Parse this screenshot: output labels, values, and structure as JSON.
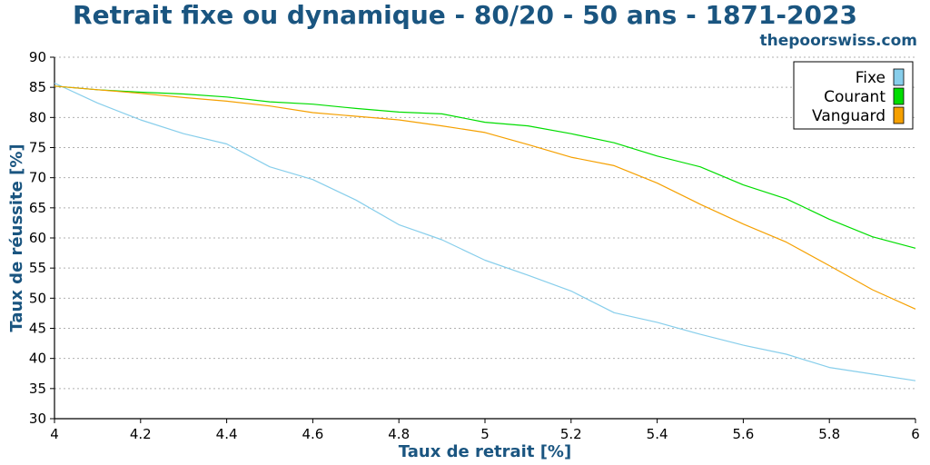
{
  "header": {
    "title": "Retrait fixe ou dynamique - 80/20 - 50 ans - 1871-2023",
    "site": "thepoorswiss.com"
  },
  "chart_data": {
    "type": "line",
    "title": "Retrait fixe ou dynamique - 80/20 - 50 ans - 1871-2023",
    "xlabel": "Taux de retrait [%]",
    "ylabel": "Taux de réussite [%]",
    "xlim": [
      4,
      6
    ],
    "ylim": [
      30,
      90
    ],
    "xticks": [
      "4",
      "4.2",
      "4.4",
      "4.6",
      "4.8",
      "5",
      "5.2",
      "5.4",
      "5.6",
      "5.8",
      "6"
    ],
    "yticks": [
      "30",
      "35",
      "40",
      "45",
      "50",
      "55",
      "60",
      "65",
      "70",
      "75",
      "80",
      "85",
      "90"
    ],
    "grid": true,
    "legend_position": "top-right",
    "x": [
      4.0,
      4.1,
      4.2,
      4.3,
      4.4,
      4.5,
      4.6,
      4.7,
      4.8,
      4.9,
      5.0,
      5.1,
      5.2,
      5.3,
      5.4,
      5.5,
      5.6,
      5.7,
      5.8,
      5.9,
      6.0
    ],
    "series": [
      {
        "name": "Fixe",
        "color": "#87ceeb",
        "values": [
          85.7,
          82.4,
          79.6,
          77.3,
          75.6,
          71.8,
          69.7,
          66.3,
          62.2,
          59.7,
          56.3,
          53.8,
          51.2,
          47.6,
          46.0,
          44.0,
          42.2,
          40.7,
          38.5,
          37.4,
          36.3
        ]
      },
      {
        "name": "Courant",
        "color": "#00dd00",
        "values": [
          85.2,
          84.6,
          84.2,
          83.9,
          83.4,
          82.6,
          82.2,
          81.5,
          80.9,
          80.6,
          79.2,
          78.6,
          77.3,
          75.8,
          73.6,
          71.8,
          68.8,
          66.5,
          63.1,
          60.2,
          58.3
        ]
      },
      {
        "name": "Vanguard",
        "color": "#f5a000",
        "values": [
          85.2,
          84.6,
          84.0,
          83.3,
          82.7,
          81.9,
          80.8,
          80.2,
          79.6,
          78.6,
          77.5,
          75.5,
          73.4,
          72.0,
          69.1,
          65.6,
          62.3,
          59.3,
          55.4,
          51.4,
          48.2
        ]
      }
    ]
  }
}
